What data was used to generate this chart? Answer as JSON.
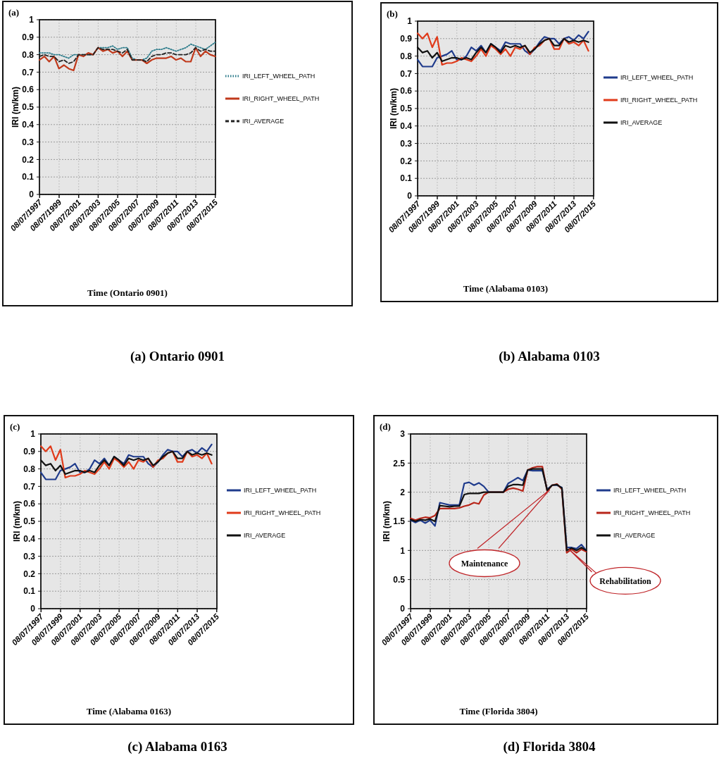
{
  "chart_data": [
    {
      "type": "line",
      "title": "(a) Ontario 0901",
      "xlabel": "Time (Ontario 0901)",
      "ylabel": "IRI (m/km)",
      "annotations": [
        "(a)"
      ],
      "x": [
        "1997-07",
        "1998-01",
        "1998-07",
        "1999-01",
        "1999-07",
        "2000-01",
        "2000-07",
        "2001-01",
        "2001-07",
        "2002-01",
        "2002-07",
        "2003-01",
        "2003-07",
        "2004-01",
        "2004-07",
        "2005-01",
        "2005-07",
        "2006-01",
        "2006-07",
        "2007-01",
        "2007-07",
        "2008-01",
        "2008-07",
        "2009-01",
        "2009-07",
        "2010-01",
        "2010-07",
        "2011-01",
        "2011-07",
        "2012-01",
        "2012-07",
        "2013-01",
        "2013-07",
        "2014-01",
        "2014-07",
        "2015-01",
        "2015-07"
      ],
      "xlim": [
        "1997-07-01",
        "2015-07-15"
      ],
      "xticks": [
        {
          "value": "1997-07-08",
          "label": "08/07/1997"
        },
        {
          "value": "1999-07-08",
          "label": "08/07/1999"
        },
        {
          "value": "2001-07-08",
          "label": "08/07/2001"
        },
        {
          "value": "2003-07-08",
          "label": "08/07/2003"
        },
        {
          "value": "2005-07-08",
          "label": "08/07/2005"
        },
        {
          "value": "2007-07-08",
          "label": "08/07/2007"
        },
        {
          "value": "2009-07-08",
          "label": "08/07/2009"
        },
        {
          "value": "2011-07-08",
          "label": "08/07/2011"
        },
        {
          "value": "2013-07-08",
          "label": "08/07/2013"
        },
        {
          "value": "2015-07-08",
          "label": "08/07/2015"
        }
      ],
      "ylim": [
        0,
        1
      ],
      "yticks": [
        0,
        0.1,
        0.2,
        0.3,
        0.4,
        0.5,
        0.6,
        0.7,
        0.8,
        0.9,
        1
      ],
      "grid": true,
      "legend": "right",
      "series": [
        {
          "name": "IRI_LEFT_WHEEL_PATH",
          "color": "#2e7d8c",
          "line_style": "dotted",
          "values": [
            0.81,
            0.81,
            0.81,
            0.8,
            0.8,
            0.79,
            0.78,
            0.8,
            0.8,
            0.8,
            0.8,
            0.8,
            0.84,
            0.84,
            0.84,
            0.85,
            0.83,
            0.84,
            0.84,
            0.78,
            0.77,
            0.77,
            0.78,
            0.82,
            0.83,
            0.83,
            0.84,
            0.83,
            0.82,
            0.83,
            0.84,
            0.86,
            0.85,
            0.84,
            0.83,
            0.85,
            0.87
          ]
        },
        {
          "name": "IRI_RIGHT_WHEEL_PATH",
          "color": "#c0391b",
          "line_style": "solid",
          "values": [
            0.77,
            0.79,
            0.76,
            0.79,
            0.72,
            0.74,
            0.72,
            0.71,
            0.8,
            0.79,
            0.81,
            0.8,
            0.84,
            0.82,
            0.83,
            0.81,
            0.82,
            0.79,
            0.82,
            0.77,
            0.77,
            0.77,
            0.75,
            0.77,
            0.78,
            0.78,
            0.78,
            0.79,
            0.77,
            0.78,
            0.76,
            0.76,
            0.84,
            0.79,
            0.82,
            0.8,
            0.79
          ]
        },
        {
          "name": "IRI_AVERAGE",
          "color": "#222222",
          "line_style": "dashed",
          "values": [
            0.79,
            0.8,
            0.79,
            0.79,
            0.76,
            0.77,
            0.75,
            0.76,
            0.8,
            0.8,
            0.8,
            0.8,
            0.84,
            0.83,
            0.83,
            0.83,
            0.82,
            0.81,
            0.83,
            0.77,
            0.77,
            0.77,
            0.76,
            0.79,
            0.8,
            0.8,
            0.81,
            0.81,
            0.8,
            0.8,
            0.8,
            0.81,
            0.84,
            0.82,
            0.83,
            0.82,
            0.82
          ]
        }
      ]
    },
    {
      "type": "line",
      "title": "(b) Alabama 0103",
      "xlabel": "Time (Alabama 0103)",
      "ylabel": "IRI (m/km)",
      "annotations": [
        "(b)"
      ],
      "x": [
        "1997-07",
        "1998-01",
        "1998-07",
        "1999-01",
        "1999-07",
        "2000-01",
        "2000-07",
        "2001-01",
        "2001-07",
        "2002-01",
        "2002-07",
        "2003-01",
        "2003-07",
        "2004-01",
        "2004-07",
        "2005-01",
        "2005-07",
        "2006-01",
        "2006-07",
        "2007-01",
        "2007-07",
        "2008-01",
        "2008-07",
        "2009-01",
        "2009-07",
        "2010-01",
        "2010-07",
        "2011-01",
        "2011-07",
        "2012-01",
        "2012-07",
        "2013-01",
        "2013-07",
        "2014-01",
        "2014-07",
        "2015-01"
      ],
      "xlim": [
        "1997-07-01",
        "2015-07-15"
      ],
      "xticks": [
        {
          "value": "1997-07-08",
          "label": "08/07/1997"
        },
        {
          "value": "1999-07-08",
          "label": "08/07/1999"
        },
        {
          "value": "2001-07-08",
          "label": "08/07/2001"
        },
        {
          "value": "2003-07-08",
          "label": "08/07/2003"
        },
        {
          "value": "2005-07-08",
          "label": "08/07/2005"
        },
        {
          "value": "2007-07-08",
          "label": "08/07/2007"
        },
        {
          "value": "2009-07-08",
          "label": "08/07/2009"
        },
        {
          "value": "2011-07-08",
          "label": "08/07/2011"
        },
        {
          "value": "2013-07-08",
          "label": "08/07/2013"
        },
        {
          "value": "2015-07-08",
          "label": "08/07/2015"
        }
      ],
      "ylim": [
        0,
        1
      ],
      "yticks": [
        0,
        0.1,
        0.2,
        0.3,
        0.4,
        0.5,
        0.6,
        0.7,
        0.8,
        0.9,
        1
      ],
      "grid": true,
      "legend": "right",
      "series": [
        {
          "name": "IRI_LEFT_WHEEL_PATH",
          "color": "#1f3b8c",
          "line_style": "solid",
          "values": [
            0.78,
            0.74,
            0.74,
            0.74,
            0.79,
            0.8,
            0.81,
            0.83,
            0.78,
            0.78,
            0.8,
            0.85,
            0.83,
            0.86,
            0.82,
            0.87,
            0.85,
            0.83,
            0.88,
            0.87,
            0.87,
            0.87,
            0.83,
            0.81,
            0.84,
            0.88,
            0.91,
            0.9,
            0.9,
            0.87,
            0.9,
            0.91,
            0.89,
            0.92,
            0.9,
            0.94
          ]
        },
        {
          "name": "IRI_RIGHT_WHEEL_PATH",
          "color": "#e03a1a",
          "line_style": "solid",
          "values": [
            0.93,
            0.9,
            0.93,
            0.85,
            0.91,
            0.75,
            0.76,
            0.76,
            0.77,
            0.79,
            0.78,
            0.77,
            0.8,
            0.84,
            0.8,
            0.86,
            0.84,
            0.81,
            0.84,
            0.8,
            0.85,
            0.84,
            0.86,
            0.81,
            0.85,
            0.86,
            0.89,
            0.9,
            0.84,
            0.84,
            0.9,
            0.87,
            0.88,
            0.86,
            0.89,
            0.83
          ]
        },
        {
          "name": "IRI_AVERAGE",
          "color": "#111111",
          "line_style": "solid",
          "values": [
            0.85,
            0.82,
            0.83,
            0.79,
            0.82,
            0.77,
            0.78,
            0.79,
            0.79,
            0.78,
            0.79,
            0.78,
            0.82,
            0.85,
            0.82,
            0.87,
            0.85,
            0.82,
            0.86,
            0.85,
            0.86,
            0.85,
            0.86,
            0.82,
            0.84,
            0.87,
            0.89,
            0.9,
            0.86,
            0.86,
            0.9,
            0.88,
            0.89,
            0.88,
            0.89,
            0.88
          ]
        }
      ]
    },
    {
      "type": "line",
      "title": "(c) Alabama 0163",
      "xlabel": "Time (Alabama 0163)",
      "ylabel": "IRI (m/km)",
      "annotations": [
        "(c)"
      ],
      "x": [
        "1997-07",
        "1998-01",
        "1998-07",
        "1999-01",
        "1999-07",
        "2000-01",
        "2000-07",
        "2001-01",
        "2001-07",
        "2002-01",
        "2002-07",
        "2003-01",
        "2003-07",
        "2004-01",
        "2004-07",
        "2005-01",
        "2005-07",
        "2006-01",
        "2006-07",
        "2007-01",
        "2007-07",
        "2008-01",
        "2008-07",
        "2009-01",
        "2009-07",
        "2010-01",
        "2010-07",
        "2011-01",
        "2011-07",
        "2012-01",
        "2012-07",
        "2013-01",
        "2013-07",
        "2014-01",
        "2014-07",
        "2015-01"
      ],
      "xlim": [
        "1997-07-01",
        "2015-07-15"
      ],
      "xticks": [
        {
          "value": "1997-07-08",
          "label": "08/07/1997"
        },
        {
          "value": "1999-07-08",
          "label": "08/07/1999"
        },
        {
          "value": "2001-07-08",
          "label": "08/07/2001"
        },
        {
          "value": "2003-07-08",
          "label": "08/07/2003"
        },
        {
          "value": "2005-07-08",
          "label": "08/07/2005"
        },
        {
          "value": "2007-07-08",
          "label": "08/07/2007"
        },
        {
          "value": "2009-07-08",
          "label": "08/07/2009"
        },
        {
          "value": "2011-07-08",
          "label": "08/07/2011"
        },
        {
          "value": "2013-07-08",
          "label": "08/07/2013"
        },
        {
          "value": "2015-07-08",
          "label": "08/07/2015"
        }
      ],
      "ylim": [
        0,
        1
      ],
      "yticks": [
        0,
        0.1,
        0.2,
        0.3,
        0.4,
        0.5,
        0.6,
        0.7,
        0.8,
        0.9,
        1
      ],
      "grid": true,
      "legend": "right",
      "series": [
        {
          "name": "IRI_LEFT_WHEEL_PATH",
          "color": "#1f3b8c",
          "line_style": "solid",
          "values": [
            0.78,
            0.74,
            0.74,
            0.74,
            0.79,
            0.8,
            0.81,
            0.83,
            0.78,
            0.78,
            0.8,
            0.85,
            0.83,
            0.86,
            0.82,
            0.87,
            0.85,
            0.83,
            0.88,
            0.87,
            0.87,
            0.87,
            0.83,
            0.81,
            0.84,
            0.88,
            0.91,
            0.9,
            0.9,
            0.87,
            0.9,
            0.91,
            0.89,
            0.92,
            0.9,
            0.94
          ]
        },
        {
          "name": "IRI_RIGHT_WHEEL_PATH",
          "color": "#e03a1a",
          "line_style": "solid",
          "values": [
            0.93,
            0.9,
            0.93,
            0.85,
            0.91,
            0.75,
            0.76,
            0.76,
            0.77,
            0.79,
            0.78,
            0.77,
            0.8,
            0.84,
            0.8,
            0.86,
            0.84,
            0.81,
            0.84,
            0.8,
            0.85,
            0.84,
            0.86,
            0.81,
            0.85,
            0.86,
            0.89,
            0.9,
            0.84,
            0.84,
            0.9,
            0.87,
            0.88,
            0.86,
            0.89,
            0.83
          ]
        },
        {
          "name": "IRI_AVERAGE",
          "color": "#111111",
          "line_style": "solid",
          "values": [
            0.85,
            0.82,
            0.83,
            0.79,
            0.82,
            0.77,
            0.78,
            0.79,
            0.79,
            0.78,
            0.79,
            0.78,
            0.82,
            0.85,
            0.82,
            0.87,
            0.85,
            0.82,
            0.86,
            0.85,
            0.86,
            0.85,
            0.86,
            0.82,
            0.84,
            0.87,
            0.89,
            0.9,
            0.86,
            0.86,
            0.9,
            0.88,
            0.89,
            0.88,
            0.89,
            0.88
          ]
        }
      ]
    },
    {
      "type": "line",
      "title": "(d) Florida 3804",
      "xlabel": "Time (Florida 3804)",
      "ylabel": "IRI (m/km)",
      "annotations": [
        "(d)",
        "Maintenance",
        "Rehabilitation"
      ],
      "x": [
        "1997-07",
        "1998-01",
        "1998-07",
        "1999-01",
        "1999-07",
        "2000-01",
        "2000-07",
        "2001-01",
        "2001-07",
        "2002-01",
        "2002-07",
        "2003-01",
        "2003-07",
        "2004-01",
        "2004-07",
        "2005-01",
        "2005-07",
        "2006-01",
        "2006-07",
        "2007-01",
        "2007-07",
        "2008-01",
        "2008-07",
        "2009-01",
        "2009-07",
        "2010-01",
        "2010-07",
        "2011-01",
        "2011-07",
        "2012-01",
        "2012-07",
        "2013-01",
        "2013-07",
        "2014-01",
        "2014-07",
        "2015-01",
        "2015-07"
      ],
      "xlim": [
        "1997-07-01",
        "2015-07-15"
      ],
      "xticks": [
        {
          "value": "1997-07-08",
          "label": "08/07/1997"
        },
        {
          "value": "1999-07-08",
          "label": "08/07/1999"
        },
        {
          "value": "2001-07-08",
          "label": "08/07/2001"
        },
        {
          "value": "2003-07-08",
          "label": "08/07/2003"
        },
        {
          "value": "2005-07-08",
          "label": "08/07/2005"
        },
        {
          "value": "2007-07-08",
          "label": "08/07/2007"
        },
        {
          "value": "2009-07-08",
          "label": "08/07/2009"
        },
        {
          "value": "2011-07-08",
          "label": "08/07/2011"
        },
        {
          "value": "2013-07-08",
          "label": "08/07/2013"
        },
        {
          "value": "2015-07-08",
          "label": "08/07/2015"
        }
      ],
      "ylim": [
        0,
        3
      ],
      "yticks": [
        0,
        0.5,
        1,
        1.5,
        2,
        2.5,
        3
      ],
      "grid": true,
      "legend": "right",
      "series": [
        {
          "name": "IRI_LEFT_WHEEL_PATH",
          "color": "#1f3b8c",
          "line_style": "solid",
          "values": [
            1.52,
            1.48,
            1.52,
            1.47,
            1.52,
            1.42,
            1.82,
            1.8,
            1.78,
            1.78,
            1.78,
            2.15,
            2.17,
            2.12,
            2.16,
            2.1,
            2.0,
            2.0,
            2.0,
            2.0,
            2.15,
            2.2,
            2.25,
            2.2,
            2.38,
            2.37,
            2.37,
            2.37,
            2.05,
            2.12,
            2.12,
            2.08,
            1.05,
            1.05,
            1.03,
            1.1,
            1.0
          ]
        },
        {
          "name": "IRI_RIGHT_WHEEL_PATH",
          "color": "#b8261a",
          "line_style": "solid",
          "values": [
            1.55,
            1.52,
            1.55,
            1.57,
            1.56,
            1.6,
            1.72,
            1.72,
            1.72,
            1.72,
            1.73,
            1.76,
            1.78,
            1.82,
            1.8,
            1.95,
            2.0,
            2.0,
            2.0,
            2.0,
            2.05,
            2.07,
            2.05,
            2.02,
            2.38,
            2.42,
            2.44,
            2.44,
            2.02,
            2.12,
            2.14,
            2.05,
            0.96,
            1.02,
            0.96,
            1.02,
            0.98
          ]
        },
        {
          "name": "IRI_AVERAGE",
          "color": "#111111",
          "line_style": "solid",
          "values": [
            1.53,
            1.5,
            1.53,
            1.52,
            1.54,
            1.5,
            1.77,
            1.76,
            1.75,
            1.76,
            1.76,
            1.96,
            1.98,
            1.98,
            1.98,
            2.0,
            2.0,
            2.0,
            2.0,
            2.0,
            2.1,
            2.13,
            2.13,
            2.12,
            2.38,
            2.4,
            2.4,
            2.4,
            2.03,
            2.12,
            2.13,
            2.07,
            1.0,
            1.04,
            1.0,
            1.05,
            1.0
          ]
        }
      ]
    }
  ]
}
